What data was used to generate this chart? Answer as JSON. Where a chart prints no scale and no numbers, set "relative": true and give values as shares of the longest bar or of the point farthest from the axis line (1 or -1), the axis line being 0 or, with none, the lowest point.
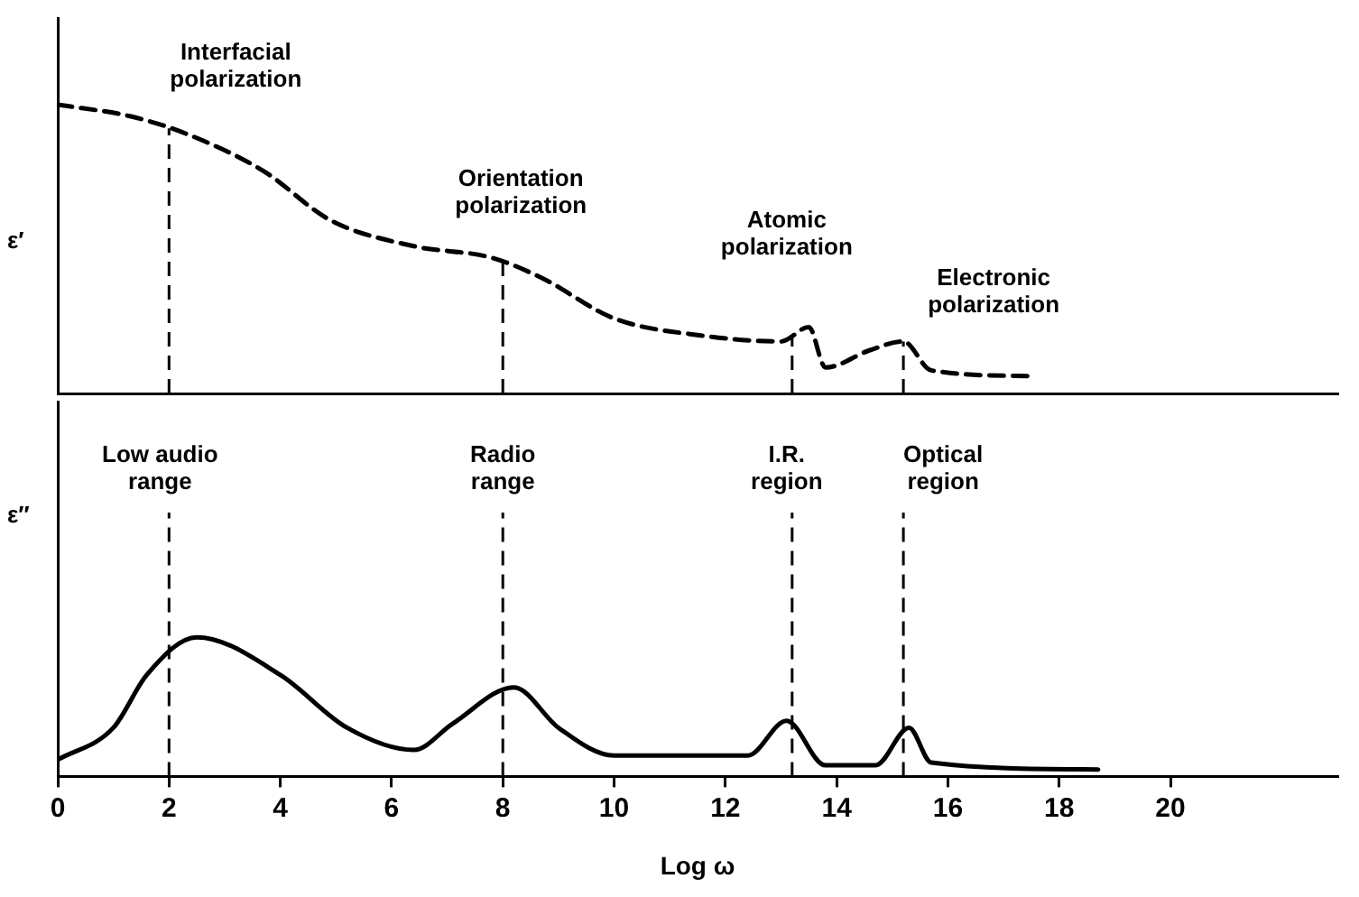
{
  "chart_data": [
    {
      "type": "line",
      "ylabel": "ε′",
      "relative": true,
      "xlim": [
        0,
        23
      ],
      "xticks": [
        0,
        2,
        4,
        6,
        8,
        10,
        12,
        14,
        16,
        18,
        20
      ],
      "tick_labels": false,
      "legend": false,
      "grid": false,
      "marker": "none",
      "annotations": [
        "Interfacial\npolarization",
        "Orientation\npolarization",
        "Atomic\npolarization",
        "Electronic\npolarization"
      ],
      "ref_lines": [
        {
          "axis": "x",
          "value": 2,
          "line_style": "dashed"
        },
        {
          "axis": "x",
          "value": 8,
          "line_style": "dashed"
        },
        {
          "axis": "x",
          "value": 13.2,
          "line_style": "dashed"
        },
        {
          "axis": "x",
          "value": 15.2,
          "line_style": "dashed"
        }
      ],
      "series": [
        {
          "color": "#000000",
          "line_style": "dashed",
          "x": [
            0,
            1.3,
            2.3,
            3.7,
            4.9,
            6.4,
            7.8,
            8.7,
            10,
            11.6,
            13,
            13.5,
            13.8,
            14.6,
            15.2,
            15.7,
            17.5
          ],
          "values": [
            1,
            0.96,
            0.9,
            0.77,
            0.6,
            0.51,
            0.47,
            0.4,
            0.26,
            0.2,
            0.18,
            0.23,
            0.09,
            0.15,
            0.18,
            0.08,
            0.06
          ]
        }
      ]
    },
    {
      "type": "line",
      "ylabel": "ε″",
      "xlabel": "Log ω",
      "relative": true,
      "xlim": [
        0,
        23
      ],
      "xticks": [
        0,
        2,
        4,
        6,
        8,
        10,
        12,
        14,
        16,
        18,
        20
      ],
      "tick_labels": "x",
      "legend": false,
      "grid": false,
      "marker": "none",
      "annotations": [
        "Low audio\nrange",
        "Radio\nrange",
        "I.R.\nregion",
        "Optical\nregion"
      ],
      "ref_lines": [
        {
          "axis": "x",
          "value": 2,
          "line_style": "dashed"
        },
        {
          "axis": "x",
          "value": 8,
          "line_style": "dashed"
        },
        {
          "axis": "x",
          "value": 13.2,
          "line_style": "dashed"
        },
        {
          "axis": "x",
          "value": 15.2,
          "line_style": "dashed"
        }
      ],
      "series": [
        {
          "color": "#000000",
          "line_style": "solid",
          "x": [
            0,
            1,
            1.6,
            2.5,
            4,
            5.2,
            6.4,
            7.1,
            8.2,
            9,
            10,
            12.4,
            13.1,
            13.8,
            14.7,
            15.3,
            15.7,
            18.7
          ],
          "values": [
            0.12,
            0.35,
            0.73,
            1,
            0.73,
            0.35,
            0.19,
            0.38,
            0.64,
            0.35,
            0.15,
            0.15,
            0.4,
            0.08,
            0.08,
            0.35,
            0.1,
            0.05
          ]
        }
      ]
    }
  ]
}
